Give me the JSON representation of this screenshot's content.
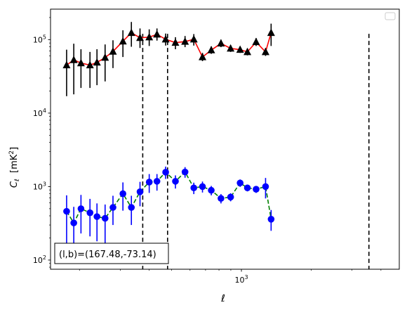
{
  "chart_data": {
    "type": "scatter",
    "title": "",
    "xlabel": "ℓ",
    "ylabel_main": "C",
    "ylabel_sub": "ℓ",
    "ylabel_unit_open": "  [mK",
    "ylabel_unit_sup": "2",
    "ylabel_unit_close": "]",
    "xscale": "log",
    "yscale": "log",
    "xlim": [
      150,
      4800
    ],
    "ylim": [
      75,
      260000
    ],
    "x_ticks": [
      {
        "value": 1000,
        "base": "10",
        "exp": "3"
      }
    ],
    "y_ticks": [
      {
        "value": 100,
        "base": "10",
        "exp": "2"
      },
      {
        "value": 1000,
        "base": "10",
        "exp": "3"
      },
      {
        "value": 10000,
        "base": "10",
        "exp": "4"
      },
      {
        "value": 100000,
        "base": "10",
        "exp": "5"
      }
    ],
    "vlines": [
      375,
      480,
      3550
    ],
    "legend": "top-right (empty)",
    "annotation": "(l,b)=(167.48,-73.14)",
    "series": [
      {
        "marker": "triangle",
        "color": "#000000",
        "line_color": "#ff0000",
        "line_style": "solid",
        "points": [
          {
            "x": 176,
            "y": 45000,
            "lo": 17000,
            "hi": 73000
          },
          {
            "x": 189,
            "y": 53000,
            "lo": 18000,
            "hi": 88000
          },
          {
            "x": 203,
            "y": 48000,
            "lo": 22000,
            "hi": 74000
          },
          {
            "x": 222,
            "y": 45000,
            "lo": 22000,
            "hi": 68000
          },
          {
            "x": 238,
            "y": 49000,
            "lo": 24000,
            "hi": 74000
          },
          {
            "x": 258,
            "y": 57000,
            "lo": 27000,
            "hi": 86000
          },
          {
            "x": 279,
            "y": 69000,
            "lo": 41000,
            "hi": 98000
          },
          {
            "x": 308,
            "y": 95000,
            "lo": 58000,
            "hi": 134000
          },
          {
            "x": 335,
            "y": 124000,
            "lo": 80000,
            "hi": 174000
          },
          {
            "x": 365,
            "y": 106000,
            "lo": 77000,
            "hi": 142000
          },
          {
            "x": 400,
            "y": 108000,
            "lo": 82000,
            "hi": 138000
          },
          {
            "x": 432,
            "y": 118000,
            "lo": 97000,
            "hi": 142000
          },
          {
            "x": 471,
            "y": 101000,
            "lo": 83000,
            "hi": 121000
          },
          {
            "x": 519,
            "y": 91000,
            "lo": 74000,
            "hi": 108000
          },
          {
            "x": 571,
            "y": 94000,
            "lo": 79000,
            "hi": 112000
          },
          {
            "x": 623,
            "y": 101000,
            "lo": 83000,
            "hi": 119000
          },
          {
            "x": 679,
            "y": 58000,
            "lo": 51000,
            "hi": 66000
          },
          {
            "x": 741,
            "y": 72000,
            "lo": 64000,
            "hi": 81000
          },
          {
            "x": 816,
            "y": 89000,
            "lo": 79000,
            "hi": 100000
          },
          {
            "x": 898,
            "y": 76000,
            "lo": 68000,
            "hi": 84000
          },
          {
            "x": 987,
            "y": 73000,
            "lo": 66000,
            "hi": 81000
          },
          {
            "x": 1061,
            "y": 68000,
            "lo": 61000,
            "hi": 76000
          },
          {
            "x": 1157,
            "y": 93000,
            "lo": 82000,
            "hi": 105000
          },
          {
            "x": 1271,
            "y": 68000,
            "lo": 60000,
            "hi": 77000
          },
          {
            "x": 1343,
            "y": 124000,
            "lo": 82000,
            "hi": 165000
          }
        ]
      },
      {
        "marker": "circle",
        "color": "#0000ff",
        "line_color": "#008000",
        "line_style": "dashed",
        "points": [
          {
            "x": 176,
            "y": 460,
            "lo": 160,
            "hi": 760
          },
          {
            "x": 189,
            "y": 320,
            "lo": 130,
            "hi": 530
          },
          {
            "x": 203,
            "y": 500,
            "lo": 230,
            "hi": 770
          },
          {
            "x": 222,
            "y": 440,
            "lo": 210,
            "hi": 680
          },
          {
            "x": 238,
            "y": 390,
            "lo": 180,
            "hi": 590
          },
          {
            "x": 258,
            "y": 370,
            "lo": 170,
            "hi": 570
          },
          {
            "x": 279,
            "y": 520,
            "lo": 300,
            "hi": 750
          },
          {
            "x": 308,
            "y": 800,
            "lo": 470,
            "hi": 1140
          },
          {
            "x": 335,
            "y": 520,
            "lo": 300,
            "hi": 750
          },
          {
            "x": 365,
            "y": 850,
            "lo": 540,
            "hi": 1160
          },
          {
            "x": 400,
            "y": 1150,
            "lo": 820,
            "hi": 1480
          },
          {
            "x": 432,
            "y": 1180,
            "lo": 880,
            "hi": 1480
          },
          {
            "x": 471,
            "y": 1570,
            "lo": 1270,
            "hi": 1870
          },
          {
            "x": 519,
            "y": 1180,
            "lo": 940,
            "hi": 1420
          },
          {
            "x": 571,
            "y": 1580,
            "lo": 1320,
            "hi": 1840
          },
          {
            "x": 623,
            "y": 960,
            "lo": 790,
            "hi": 1130
          },
          {
            "x": 679,
            "y": 1000,
            "lo": 830,
            "hi": 1170
          },
          {
            "x": 741,
            "y": 890,
            "lo": 760,
            "hi": 1020
          },
          {
            "x": 816,
            "y": 690,
            "lo": 590,
            "hi": 790
          },
          {
            "x": 898,
            "y": 720,
            "lo": 630,
            "hi": 810
          },
          {
            "x": 987,
            "y": 1120,
            "lo": 990,
            "hi": 1250
          },
          {
            "x": 1061,
            "y": 960,
            "lo": 860,
            "hi": 1060
          },
          {
            "x": 1157,
            "y": 920,
            "lo": 820,
            "hi": 1020
          },
          {
            "x": 1271,
            "y": 1000,
            "lo": 690,
            "hi": 1310
          },
          {
            "x": 1343,
            "y": 360,
            "lo": 250,
            "hi": 480
          }
        ]
      }
    ]
  }
}
